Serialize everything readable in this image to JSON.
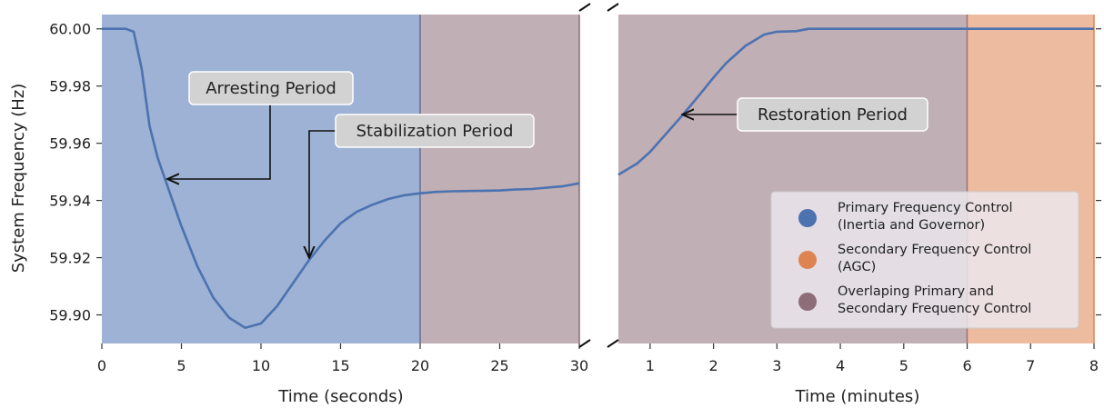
{
  "chart_data": [
    {
      "panel": "left",
      "type": "line",
      "xlabel": "Time (seconds)",
      "ylabel": "System Frequency (Hz)",
      "xlim": [
        0,
        30
      ],
      "ylim": [
        59.89,
        60.005
      ],
      "xticks": [
        "0",
        "5",
        "10",
        "15",
        "20",
        "25",
        "30"
      ],
      "yticks": [
        "59.90",
        "59.92",
        "59.94",
        "59.96",
        "59.98",
        "60.00"
      ],
      "regions": [
        {
          "x0": 0,
          "x1": 20,
          "color": "#4c72b0"
        },
        {
          "x0": 20,
          "x1": 30,
          "color": "#8c6d78"
        }
      ],
      "series": [
        {
          "color": "#4c72b0",
          "x": [
            0,
            1,
            1.5,
            2,
            2.5,
            3,
            3.5,
            4,
            5,
            6,
            7,
            8,
            9,
            10,
            11,
            12,
            13,
            14,
            15,
            16,
            17,
            18,
            19,
            20,
            21,
            22,
            23,
            24,
            25,
            26,
            27,
            28,
            29,
            30
          ],
          "y": [
            60.0,
            60.0,
            60.0,
            59.999,
            59.986,
            59.966,
            59.955,
            59.947,
            59.931,
            59.917,
            59.906,
            59.899,
            59.8955,
            59.897,
            59.903,
            59.911,
            59.919,
            59.926,
            59.932,
            59.936,
            59.9385,
            59.9405,
            59.9418,
            59.9425,
            59.943,
            59.9432,
            59.9433,
            59.9434,
            59.9435,
            59.9438,
            59.944,
            59.9445,
            59.945,
            59.946
          ]
        }
      ],
      "annotations": [
        {
          "text": "Arresting Period",
          "target_x": 4,
          "target_y": 59.947
        },
        {
          "text": "Stabilization Period",
          "target_x": 13,
          "target_y": 59.919
        }
      ]
    },
    {
      "panel": "right",
      "type": "line",
      "xlabel": "Time (minutes)",
      "xlim": [
        0.5,
        8
      ],
      "ylim": [
        59.89,
        60.005
      ],
      "xticks": [
        "1",
        "2",
        "3",
        "4",
        "5",
        "6",
        "7",
        "8"
      ],
      "regions": [
        {
          "x0": 0.5,
          "x1": 6,
          "color": "#8c6d78"
        },
        {
          "x0": 6,
          "x1": 8,
          "color": "#dd8452"
        }
      ],
      "series": [
        {
          "color": "#4c72b0",
          "x": [
            0.5,
            0.8,
            1.0,
            1.2,
            1.5,
            1.8,
            2.0,
            2.2,
            2.5,
            2.8,
            3.0,
            3.3,
            3.5,
            4,
            5,
            6,
            7,
            8
          ],
          "y": [
            59.949,
            59.953,
            59.957,
            59.962,
            59.9695,
            59.9775,
            59.983,
            59.988,
            59.994,
            59.998,
            59.999,
            59.9992,
            60.0,
            60.0,
            60.0,
            60.0,
            60.0,
            60.0
          ]
        }
      ],
      "annotations": [
        {
          "text": "Restoration Period",
          "target_x": 1.45,
          "target_y": 59.9715
        }
      ],
      "legend": {
        "placement": "lower-right",
        "entries": [
          {
            "label_line1": "Primary Frequency Control",
            "label_line2": "(Inertia and Governor)",
            "color": "#4c72b0"
          },
          {
            "label_line1": "Secondary Frequency Control",
            "label_line2": "(AGC)",
            "color": "#dd8452"
          },
          {
            "label_line1": "Overlaping Primary and",
            "label_line2": "Secondary Frequency Control",
            "color": "#8c6d78"
          }
        ]
      }
    }
  ]
}
